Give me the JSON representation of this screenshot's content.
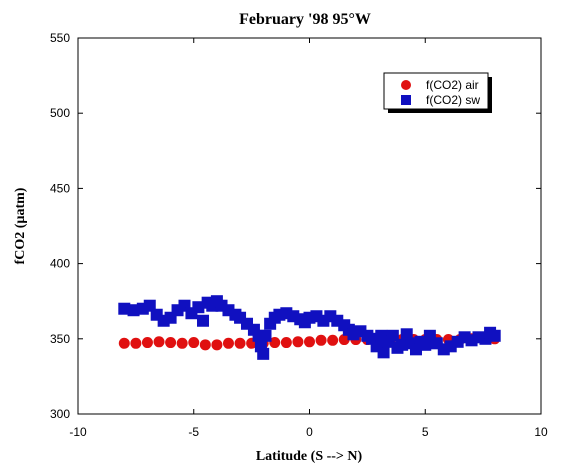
{
  "chart_data": {
    "type": "scatter",
    "title": "February '98 95°W",
    "xlabel": "Latitude (S --> N)",
    "ylabel": "fCO2 (µatm)",
    "xlim": [
      -10,
      10
    ],
    "ylim": [
      300,
      550
    ],
    "xticks": [
      -10,
      -5,
      0,
      5,
      10
    ],
    "yticks": [
      300,
      350,
      400,
      450,
      500,
      550
    ],
    "xtick_labels": [
      "-10",
      "-5",
      "0",
      "5",
      "10"
    ],
    "ytick_labels": [
      "300",
      "350",
      "400",
      "450",
      "500",
      "550"
    ],
    "grid": false,
    "legend_position": "top-right",
    "series": [
      {
        "name": "f(CO2) air",
        "color": "#e01010",
        "marker": "circle",
        "x": [
          -8.0,
          -7.5,
          -7.0,
          -6.5,
          -6.0,
          -5.5,
          -5.0,
          -4.5,
          -4.0,
          -3.5,
          -3.0,
          -2.5,
          -2.0,
          -1.5,
          -1.0,
          -0.5,
          0.0,
          0.5,
          1.0,
          1.5,
          2.0,
          2.5,
          3.0,
          3.5,
          4.0,
          4.5,
          5.0,
          5.5,
          6.0,
          6.5,
          7.0,
          7.5,
          8.0
        ],
        "y": [
          347,
          347,
          347.5,
          348,
          347.5,
          347,
          347.5,
          346,
          346,
          347,
          347,
          347,
          347,
          347.5,
          347.5,
          348,
          348,
          349,
          349,
          349.5,
          349.5,
          349.5,
          349.5,
          349.5,
          349.5,
          349.5,
          349.5,
          349.5,
          349.5,
          349.5,
          350,
          350,
          350
        ]
      },
      {
        "name": "f(CO2) sw",
        "color": "#1010c0",
        "marker": "square",
        "x": [
          -8.0,
          -7.6,
          -7.2,
          -6.9,
          -6.6,
          -6.3,
          -6.0,
          -5.7,
          -5.4,
          -5.1,
          -4.8,
          -4.6,
          -4.4,
          -4.2,
          -4.0,
          -3.8,
          -3.5,
          -3.2,
          -3.0,
          -2.7,
          -2.4,
          -2.2,
          -2.1,
          -2.0,
          -1.9,
          -1.7,
          -1.5,
          -1.3,
          -1.0,
          -0.7,
          -0.4,
          -0.2,
          0.0,
          0.3,
          0.6,
          0.9,
          1.2,
          1.5,
          1.7,
          1.9,
          2.2,
          2.5,
          2.7,
          2.9,
          3.1,
          3.2,
          3.4,
          3.6,
          3.8,
          4.0,
          4.2,
          4.4,
          4.6,
          4.8,
          5.0,
          5.2,
          5.5,
          5.8,
          6.1,
          6.4,
          6.7,
          7.0,
          7.3,
          7.6,
          7.8,
          8.0
        ],
        "y": [
          370,
          369,
          370,
          372,
          366,
          362,
          364,
          369,
          372,
          367,
          371,
          362,
          374,
          372,
          375,
          372,
          369,
          366,
          364,
          360,
          356,
          352,
          345,
          340,
          352,
          360,
          364,
          366,
          367,
          365,
          363,
          361,
          364,
          365,
          362,
          365,
          362,
          359,
          356,
          353,
          355,
          352,
          350,
          345,
          352,
          341,
          348,
          352,
          344,
          346,
          353,
          347,
          343,
          348,
          346,
          352,
          347,
          343,
          345,
          348,
          351,
          349,
          351,
          350,
          354,
          352
        ]
      }
    ]
  }
}
